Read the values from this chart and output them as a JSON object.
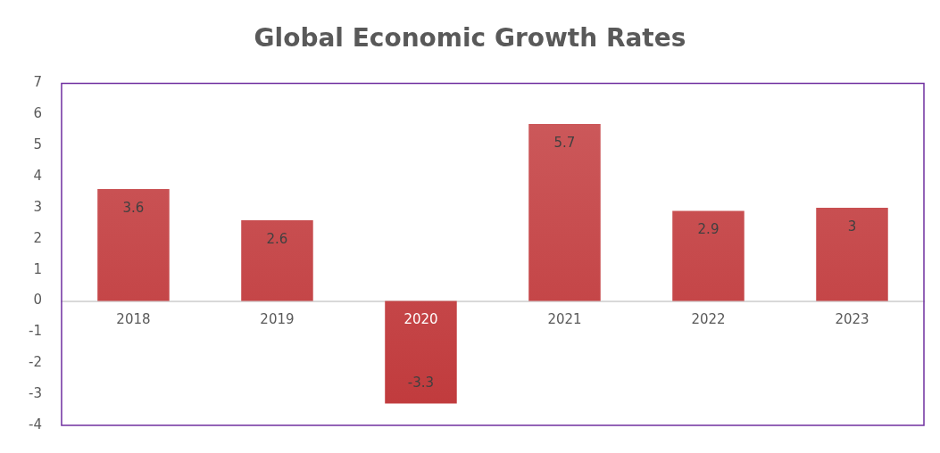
{
  "chart_data": {
    "type": "bar",
    "title": "Global Economic Growth Rates",
    "categories": [
      "2018",
      "2019",
      "2020",
      "2021",
      "2022",
      "2023"
    ],
    "values": [
      3.6,
      2.6,
      -3.3,
      5.7,
      2.9,
      3
    ],
    "color": "#c0393b",
    "ylim": [
      -4,
      7
    ],
    "yticks": [
      -4,
      -3,
      -2,
      -1,
      0,
      1,
      2,
      3,
      4,
      5,
      6,
      7
    ],
    "grid": false,
    "legend": false,
    "data_labels": true
  }
}
